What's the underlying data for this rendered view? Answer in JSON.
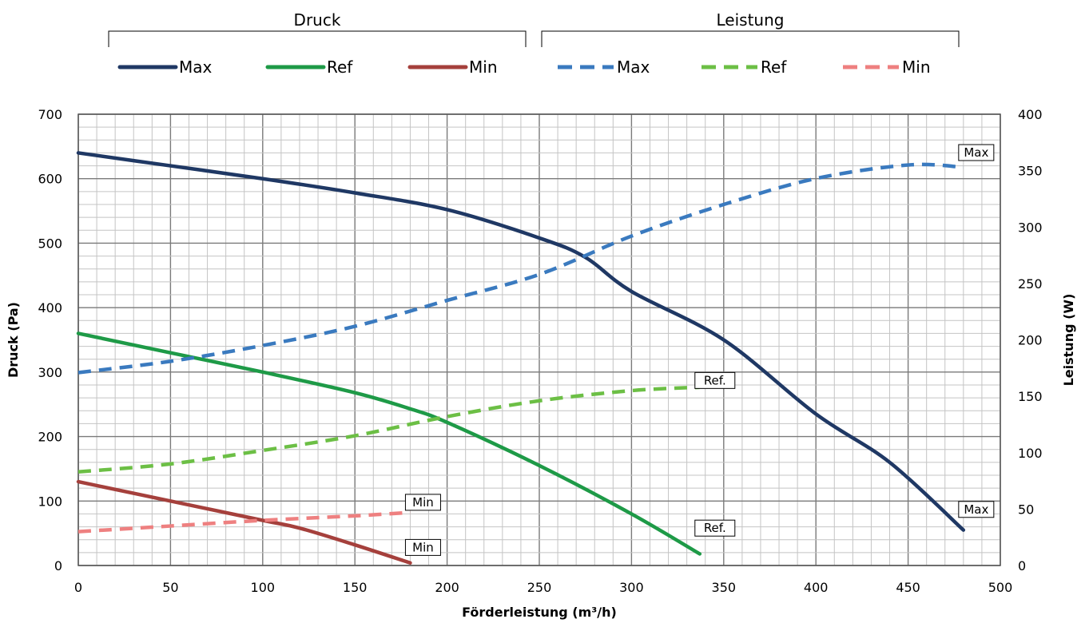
{
  "chart_data": {
    "type": "line",
    "xlabel": "Förderleistung (m³/h)",
    "ylabel_left": "Druck (Pa)",
    "ylabel_right": "Leistung (W)",
    "xlim": [
      0,
      500
    ],
    "ylim_left": [
      0,
      700
    ],
    "ylim_right": [
      0,
      400
    ],
    "x_ticks": [
      "0",
      "50",
      "100",
      "150",
      "200",
      "250",
      "300",
      "350",
      "400",
      "450",
      "500"
    ],
    "y_left_ticks": [
      "0",
      "100",
      "200",
      "300",
      "400",
      "500",
      "600",
      "700"
    ],
    "y_right_ticks": [
      "0",
      "50",
      "100",
      "150",
      "200",
      "250",
      "300",
      "350",
      "400"
    ],
    "grid": true,
    "legend_groups": [
      {
        "label": "Druck",
        "entries": [
          "Max",
          "Ref",
          "Min"
        ]
      },
      {
        "label": "Leistung",
        "entries": [
          "Max",
          "Ref",
          "Min"
        ]
      }
    ],
    "series": [
      {
        "name": "Max",
        "group": "Druck",
        "axis": "left",
        "color": "#1F3864",
        "dash": "solid",
        "x": [
          0,
          50,
          100,
          150,
          200,
          250,
          275,
          300,
          350,
          400,
          440,
          480
        ],
        "y": [
          640,
          620,
          600,
          578,
          552,
          508,
          478,
          425,
          350,
          235,
          160,
          55
        ]
      },
      {
        "name": "Ref",
        "group": "Druck",
        "axis": "left",
        "color": "#1E9A47",
        "dash": "solid",
        "x": [
          0,
          50,
          100,
          150,
          180,
          200,
          250,
          300,
          337
        ],
        "y": [
          360,
          330,
          300,
          268,
          243,
          222,
          155,
          80,
          18
        ]
      },
      {
        "name": "Min",
        "group": "Druck",
        "axis": "left",
        "color": "#A5403C",
        "dash": "solid",
        "x": [
          0,
          50,
          100,
          120,
          150,
          180
        ],
        "y": [
          130,
          100,
          70,
          58,
          32,
          4
        ]
      },
      {
        "name": "Max",
        "group": "Leistung",
        "axis": "right",
        "color": "#3A7ABF",
        "dash": "dashed",
        "x": [
          0,
          50,
          100,
          150,
          200,
          250,
          300,
          350,
          400,
          450,
          480
        ],
        "y": [
          171,
          181,
          195,
          212,
          235,
          258,
          292,
          320,
          343,
          355,
          353
        ]
      },
      {
        "name": "Ref",
        "group": "Leistung",
        "axis": "right",
        "color": "#6CBF45",
        "dash": "dashed",
        "x": [
          0,
          50,
          100,
          150,
          200,
          250,
          300,
          337
        ],
        "y": [
          83,
          90,
          102,
          115,
          132,
          146,
          155,
          158
        ]
      },
      {
        "name": "Min",
        "group": "Leistung",
        "axis": "right",
        "color": "#EE8080",
        "dash": "dashed",
        "x": [
          0,
          50,
          100,
          150,
          180
        ],
        "y": [
          30,
          35,
          40,
          44,
          47
        ]
      }
    ],
    "annotations": [
      {
        "text": "Max",
        "axis": "right",
        "x": 480,
        "y": 366
      },
      {
        "text": "Max",
        "axis": "left",
        "x": 480,
        "y": 87
      },
      {
        "text": "Ref.",
        "axis": "left",
        "x": 337,
        "y": 287
      },
      {
        "text": "Ref.",
        "axis": "left",
        "x": 337,
        "y": 58
      },
      {
        "text": "Min",
        "axis": "left",
        "x": 180,
        "y": 98
      },
      {
        "text": "Min",
        "axis": "left",
        "x": 180,
        "y": 28
      }
    ]
  }
}
